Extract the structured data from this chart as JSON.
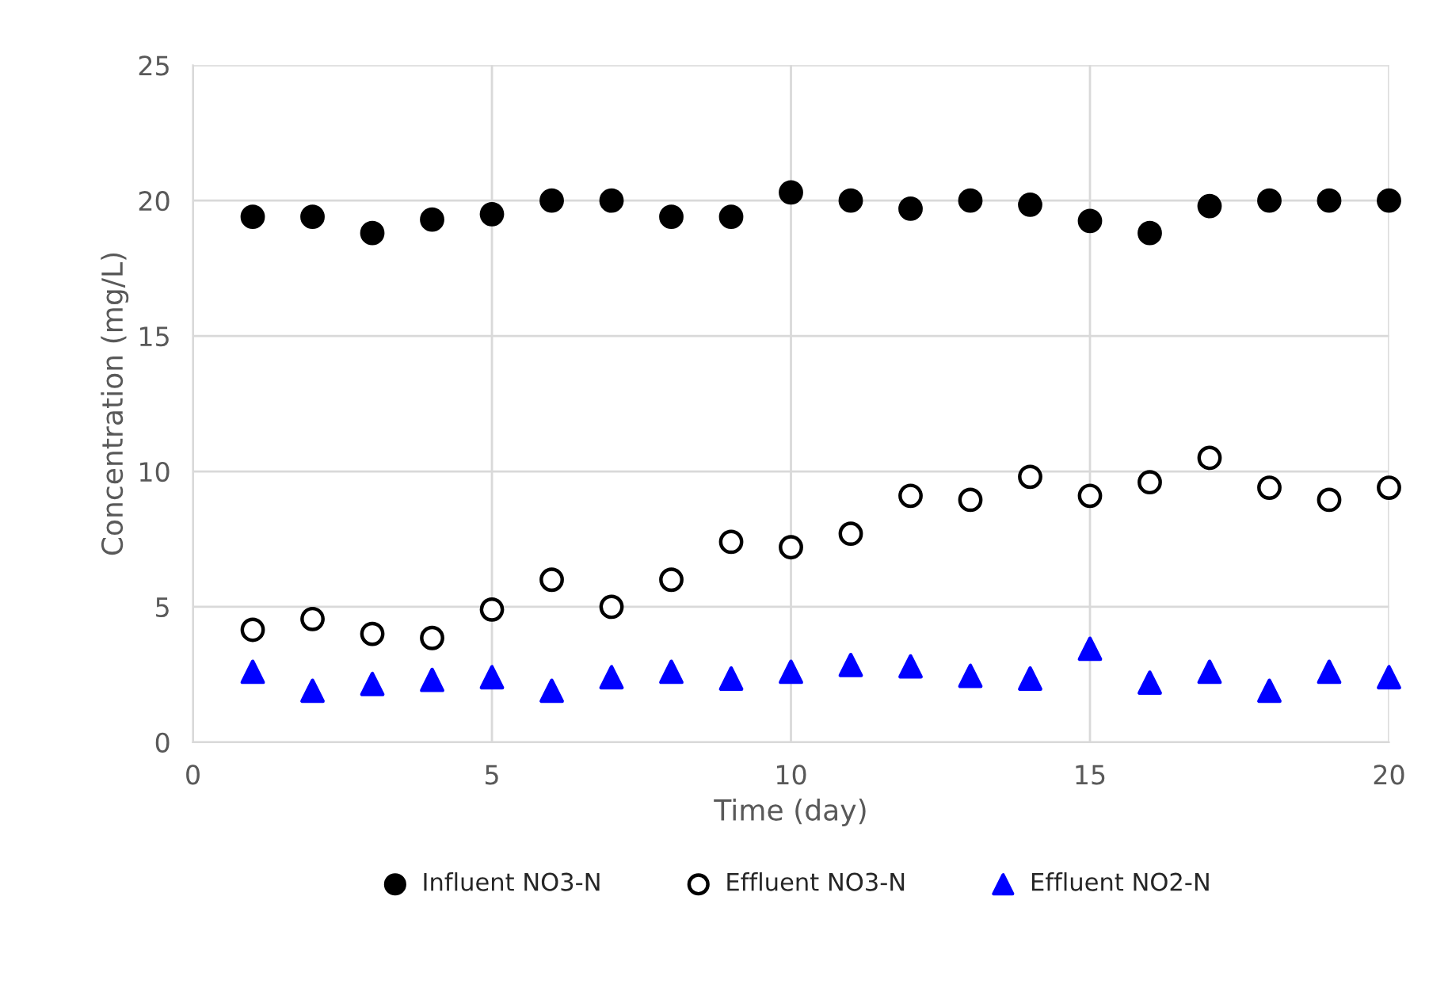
{
  "chart_data": {
    "type": "scatter",
    "xlabel": "Time (day)",
    "ylabel": "Concentration (mg/L)",
    "x": [
      1,
      2,
      3,
      4,
      5,
      6,
      7,
      8,
      9,
      10,
      11,
      12,
      13,
      14,
      15,
      16,
      17,
      18,
      19,
      20
    ],
    "series": [
      {
        "name": "Influent NO3-N",
        "color": "#000000",
        "marker": "circle",
        "values": [
          19.4,
          19.4,
          18.8,
          19.3,
          19.5,
          20.0,
          20.0,
          19.4,
          19.4,
          20.3,
          20.0,
          19.7,
          20.0,
          19.85,
          19.25,
          18.8,
          19.8,
          20.0,
          20.0,
          20.0
        ]
      },
      {
        "name": "Effluent NO3-N",
        "color": "#000000",
        "marker": "circle",
        "values": [
          4.15,
          4.55,
          4.0,
          3.85,
          4.9,
          6.0,
          5.0,
          6.0,
          7.4,
          7.2,
          7.7,
          9.1,
          8.95,
          9.8,
          9.1,
          9.6,
          10.5,
          9.4,
          8.95,
          9.4
        ]
      },
      {
        "name": "Effluent NO2-N",
        "color": "#0000ff",
        "marker": "triangle",
        "values": [
          2.6,
          1.9,
          2.15,
          2.3,
          2.4,
          1.9,
          2.4,
          2.6,
          2.35,
          2.6,
          2.85,
          2.8,
          2.45,
          2.35,
          3.45,
          2.2,
          2.6,
          1.9,
          2.6,
          2.4
        ]
      }
    ],
    "xlim": [
      0,
      20
    ],
    "xticks": [
      0,
      5,
      10,
      15,
      20
    ],
    "ylim": [
      0,
      25
    ],
    "yticks": [
      0,
      5,
      10,
      15,
      20,
      25
    ],
    "grid": true,
    "legend": "bottom"
  }
}
